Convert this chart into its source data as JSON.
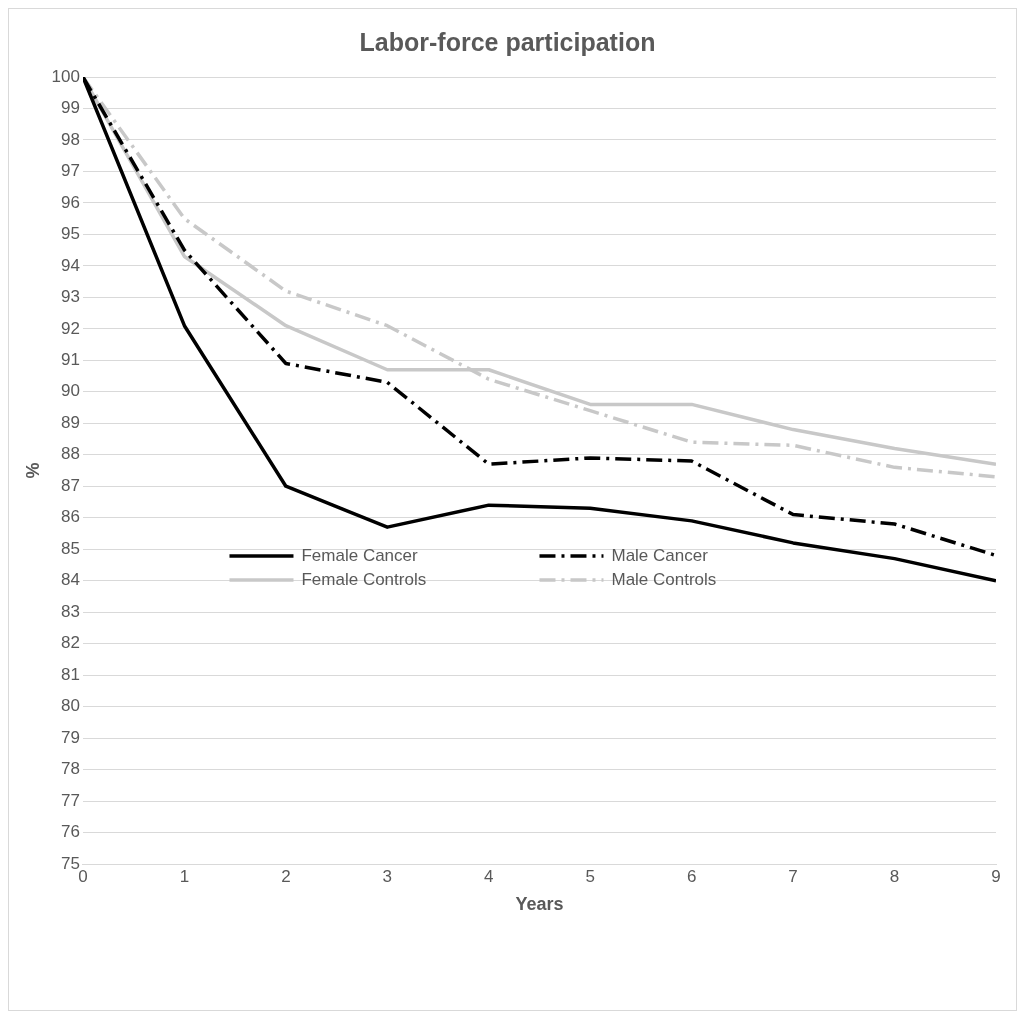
{
  "chart_data": {
    "type": "line",
    "title": "Labor-force participation",
    "xlabel": "Years",
    "ylabel": "%",
    "x": [
      0,
      1,
      2,
      3,
      4,
      5,
      6,
      7,
      8,
      9
    ],
    "series": [
      {
        "name": "Female Cancer",
        "color": "#000000",
        "line_style": "solid",
        "values": [
          100,
          92.1,
          87.0,
          85.7,
          86.4,
          86.3,
          85.9,
          85.2,
          84.7,
          84.0
        ]
      },
      {
        "name": "Male Cancer",
        "color": "#000000",
        "line_style": "dashed",
        "values": [
          100,
          94.5,
          90.9,
          90.3,
          87.7,
          87.9,
          87.8,
          86.1,
          85.8,
          84.8
        ]
      },
      {
        "name": "Female Controls",
        "color": "#c8c8c8",
        "line_style": "solid",
        "values": [
          100,
          94.3,
          92.1,
          90.7,
          90.7,
          89.6,
          89.6,
          88.8,
          88.2,
          87.7
        ]
      },
      {
        "name": "Male Controls",
        "color": "#c8c8c8",
        "line_style": "dashed",
        "values": [
          100,
          95.5,
          93.2,
          92.1,
          90.4,
          89.4,
          88.4,
          88.3,
          87.6,
          87.3
        ]
      }
    ],
    "xlim": [
      0,
      9
    ],
    "xticks": [
      0,
      1,
      2,
      3,
      4,
      5,
      6,
      7,
      8,
      9
    ],
    "ylim": [
      75,
      100
    ],
    "yticks": [
      75,
      76,
      77,
      78,
      79,
      80,
      81,
      82,
      83,
      84,
      85,
      86,
      87,
      88,
      89,
      90,
      91,
      92,
      93,
      94,
      95,
      96,
      97,
      98,
      99,
      100
    ],
    "grid": "y",
    "legend": "bottom",
    "marker": "none"
  }
}
